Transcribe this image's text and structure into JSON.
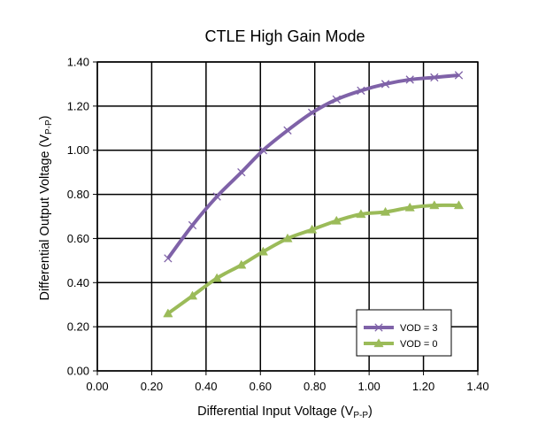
{
  "chart_data": {
    "type": "line",
    "title": "CTLE High Gain Mode",
    "xlabel": {
      "main": "Differential Input Voltage (V",
      "sub": "P-P",
      "tail": ")"
    },
    "ylabel": {
      "main": "Differential Output Voltage (V",
      "sub": "P-P",
      "tail": ")"
    },
    "xlim": [
      0,
      1.4
    ],
    "ylim": [
      0,
      1.4
    ],
    "x_ticks": [
      "0.00",
      "0.20",
      "0.40",
      "0.60",
      "0.80",
      "1.00",
      "1.20",
      "1.40"
    ],
    "y_ticks": [
      "0.00",
      "0.20",
      "0.40",
      "0.60",
      "0.80",
      "1.00",
      "1.20",
      "1.40"
    ],
    "grid": true,
    "legend_position": "bottom-right",
    "series": [
      {
        "name": "VOD = 3",
        "color": "#7f62a8",
        "marker": "x",
        "x": [
          0.26,
          0.35,
          0.44,
          0.53,
          0.61,
          0.7,
          0.79,
          0.88,
          0.97,
          1.06,
          1.15,
          1.24,
          1.33
        ],
        "y": [
          0.51,
          0.66,
          0.79,
          0.9,
          1.0,
          1.09,
          1.17,
          1.23,
          1.27,
          1.3,
          1.32,
          1.33,
          1.34
        ]
      },
      {
        "name": "VOD = 0",
        "color": "#9bbb59",
        "marker": "triangle",
        "x": [
          0.26,
          0.35,
          0.44,
          0.53,
          0.61,
          0.7,
          0.79,
          0.88,
          0.97,
          1.06,
          1.15,
          1.24,
          1.33
        ],
        "y": [
          0.26,
          0.34,
          0.42,
          0.48,
          0.54,
          0.6,
          0.64,
          0.68,
          0.71,
          0.72,
          0.74,
          0.75,
          0.75
        ]
      }
    ]
  }
}
